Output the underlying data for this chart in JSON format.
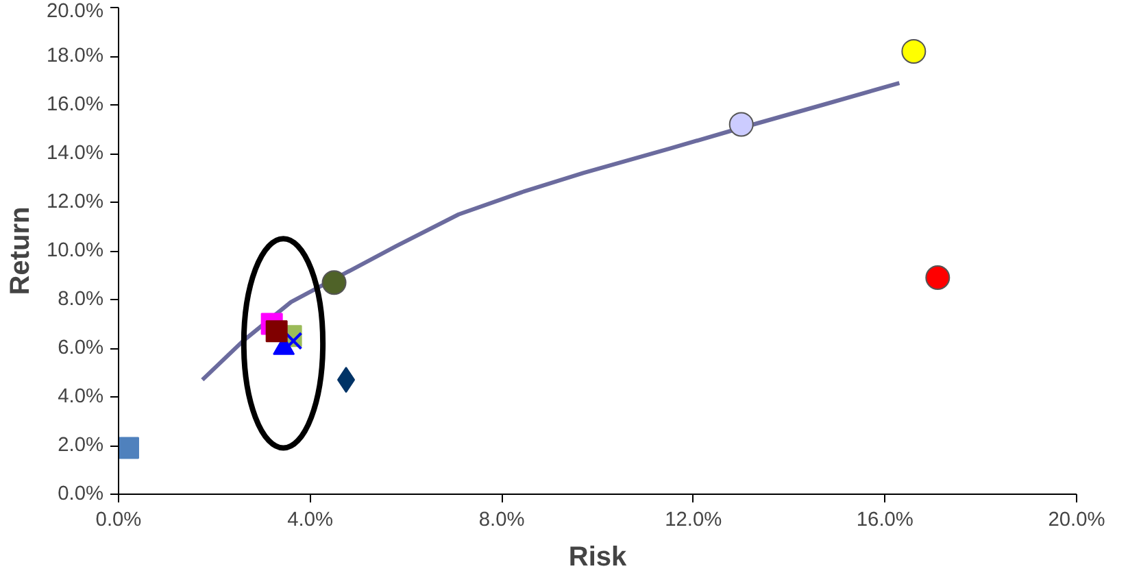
{
  "chart_data": {
    "type": "scatter",
    "xlabel": "Risk",
    "ylabel": "Return",
    "grid": false,
    "xlim": [
      0,
      20
    ],
    "ylim": [
      0,
      20
    ],
    "xticks": [
      {
        "value": 0,
        "label": "0.0%"
      },
      {
        "value": 4,
        "label": "4.0%"
      },
      {
        "value": 8,
        "label": "8.0%"
      },
      {
        "value": 12,
        "label": "12.0%"
      },
      {
        "value": 16,
        "label": "16.0%"
      },
      {
        "value": 20,
        "label": "20.0%"
      }
    ],
    "yticks": [
      {
        "value": 0,
        "label": "0.0%"
      },
      {
        "value": 2,
        "label": "2.0%"
      },
      {
        "value": 4,
        "label": "4.0%"
      },
      {
        "value": 6,
        "label": "6.0%"
      },
      {
        "value": 8,
        "label": "8.0%"
      },
      {
        "value": 10,
        "label": "10.0%"
      },
      {
        "value": 12,
        "label": "12.0%"
      },
      {
        "value": 14,
        "label": "14.0%"
      },
      {
        "value": 16,
        "label": "16.0%"
      },
      {
        "value": 18,
        "label": "18.0%"
      },
      {
        "value": 20,
        "label": "20.0%"
      }
    ],
    "series": [
      {
        "type": "line",
        "color": "#6b6b9e",
        "marker": "none",
        "line_style": "solid",
        "x": [
          1.75,
          2.6,
          3.6,
          5.8,
          7.1,
          8.4,
          9.7,
          11.5,
          12.9,
          14.7,
          16.3
        ],
        "values": [
          4.7,
          6.3,
          7.9,
          10.2,
          11.5,
          12.4,
          13.2,
          14.2,
          15.0,
          16.0,
          16.9
        ]
      },
      {
        "color": "#4f81bd",
        "marker": "square",
        "x": [
          0.2
        ],
        "values": [
          1.9
        ]
      },
      {
        "color": "#ffff00",
        "marker": "circle",
        "x": [
          16.6
        ],
        "values": [
          18.2
        ]
      },
      {
        "color": "#ccccff",
        "marker": "circle",
        "x": [
          13.0
        ],
        "values": [
          15.2
        ]
      },
      {
        "color": "#4f6228",
        "marker": "circle",
        "x": [
          4.5
        ],
        "values": [
          8.7
        ]
      },
      {
        "color": "#ff0000",
        "marker": "circle",
        "x": [
          17.1
        ],
        "values": [
          8.9
        ]
      },
      {
        "color": "#003366",
        "marker": "diamond",
        "x": [
          4.75
        ],
        "values": [
          4.7
        ]
      },
      {
        "color": "#ff00ff",
        "marker": "square",
        "x": [
          3.2
        ],
        "values": [
          7.0
        ]
      },
      {
        "color": "#9bbb59",
        "marker": "square",
        "x": [
          3.6
        ],
        "values": [
          6.5
        ]
      },
      {
        "color": "#0000ff",
        "marker": "triangle",
        "x": [
          3.45
        ],
        "values": [
          6.0
        ]
      },
      {
        "color": "#0000ff",
        "marker": "cross",
        "x": [
          3.65
        ],
        "values": [
          6.3
        ]
      },
      {
        "color": "#800000",
        "marker": "square",
        "x": [
          3.3
        ],
        "values": [
          6.7
        ]
      }
    ]
  }
}
